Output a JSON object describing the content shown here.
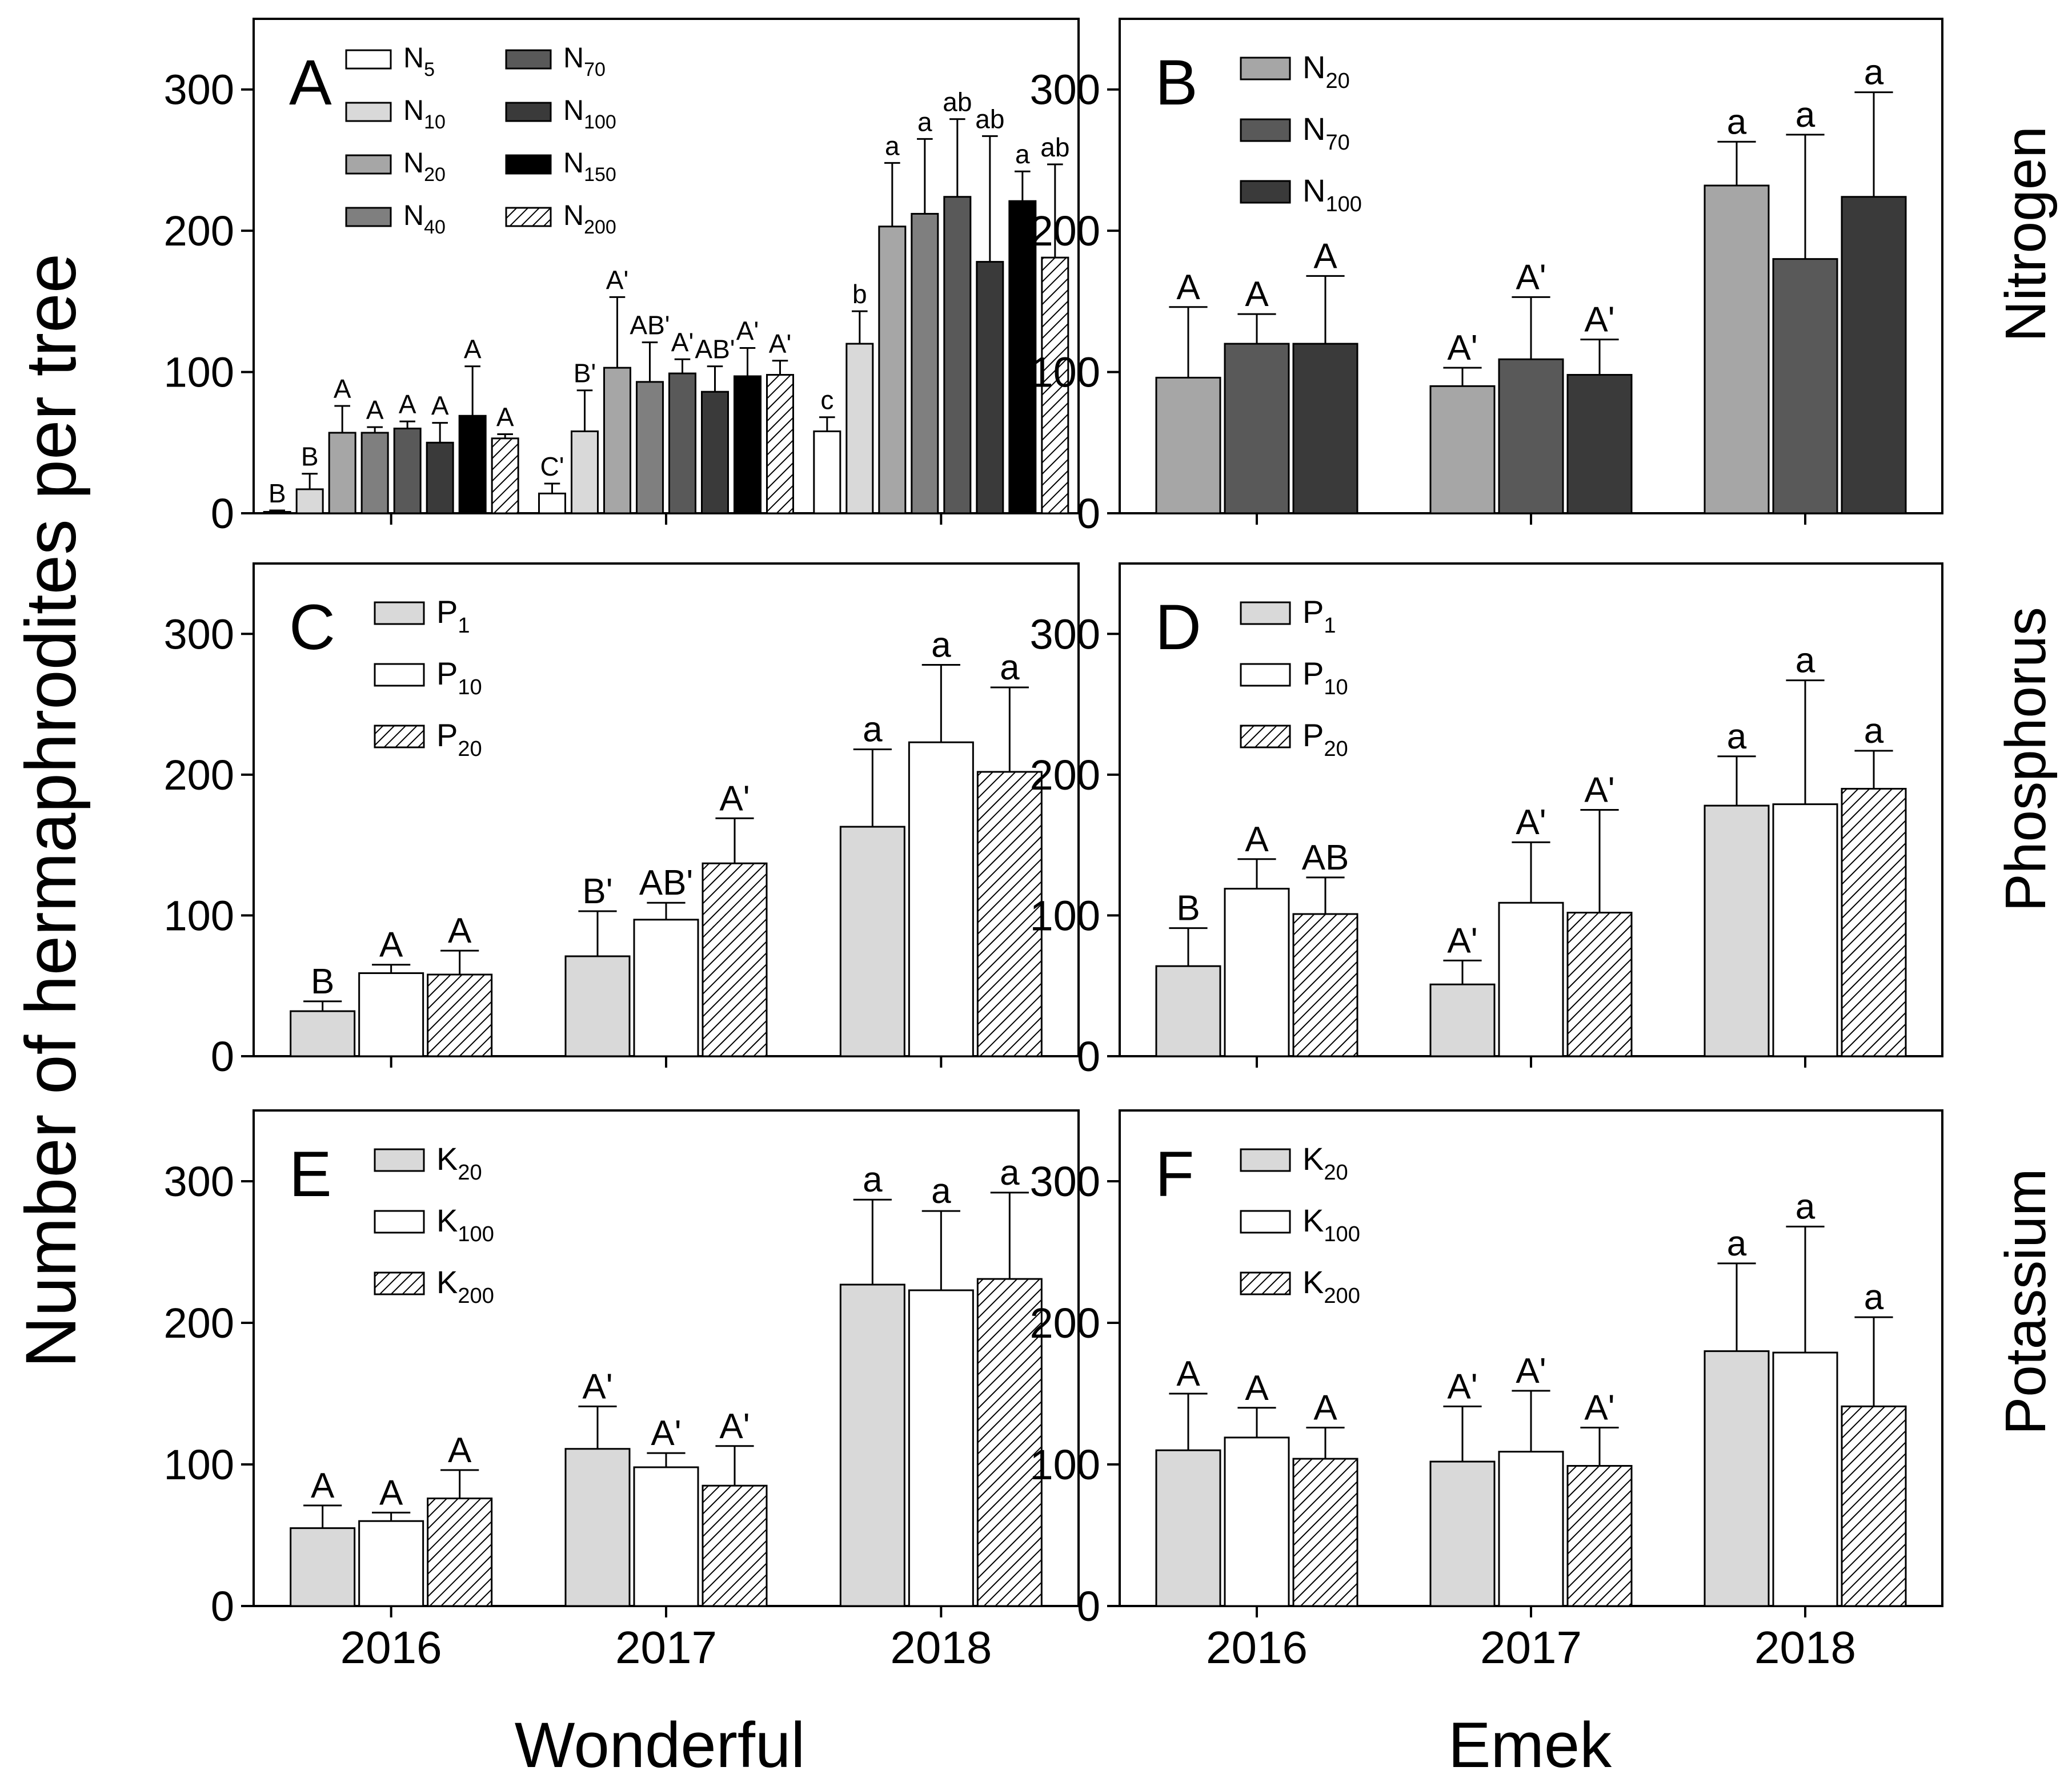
{
  "figure": {
    "ylabel": "Number of hermaphrodites per tree",
    "column_labels": [
      "Wonderful",
      "Emek"
    ],
    "row_labels": [
      "Nitrogen",
      "Phosphorus",
      "Potassium"
    ],
    "colors": {
      "axis": "#000000",
      "background": "#ffffff"
    }
  },
  "chart_data": [
    {
      "panel": "A",
      "type": "bar",
      "categories": [
        "2016",
        "2017",
        "2018"
      ],
      "ylim": [
        0,
        350
      ],
      "yticks": [
        0,
        100,
        200,
        300
      ],
      "show_xtick_labels": false,
      "legend": {
        "columns": 2,
        "placement": "top-left"
      },
      "series": [
        {
          "name": "N",
          "sub": "5",
          "fill": "#ffffff",
          "values": [
            1,
            14,
            58
          ],
          "errors": [
            1,
            7,
            10
          ],
          "letters": [
            "B",
            "C'",
            "c"
          ]
        },
        {
          "name": "N",
          "sub": "10",
          "fill": "#d9d9d9",
          "values": [
            17,
            58,
            120
          ],
          "errors": [
            11,
            29,
            23
          ],
          "letters": [
            "B",
            "B'",
            "b"
          ]
        },
        {
          "name": "N",
          "sub": "20",
          "fill": "#a6a6a6",
          "values": [
            57,
            103,
            203
          ],
          "errors": [
            19,
            50,
            45
          ],
          "letters": [
            "A",
            "A'",
            "a"
          ]
        },
        {
          "name": "N",
          "sub": "40",
          "fill": "#7f7f7f",
          "values": [
            57,
            93,
            212
          ],
          "errors": [
            4,
            28,
            53
          ],
          "letters": [
            "A",
            "AB'",
            "a"
          ]
        },
        {
          "name": "N",
          "sub": "70",
          "fill": "#595959",
          "values": [
            60,
            99,
            224
          ],
          "errors": [
            5,
            10,
            55
          ],
          "letters": [
            "A",
            "A'",
            "ab"
          ]
        },
        {
          "name": "N",
          "sub": "100",
          "fill": "#3a3a3a",
          "values": [
            50,
            86,
            178
          ],
          "errors": [
            14,
            18,
            89
          ],
          "letters": [
            "A",
            "AB'",
            "ab"
          ]
        },
        {
          "name": "N",
          "sub": "150",
          "fill": "#000000",
          "values": [
            69,
            97,
            221
          ],
          "errors": [
            35,
            20,
            21
          ],
          "letters": [
            "A",
            "A'",
            "a"
          ]
        },
        {
          "name": "N",
          "sub": "200",
          "fill": "hatch",
          "values": [
            53,
            98,
            181
          ],
          "errors": [
            3,
            10,
            66
          ],
          "letters": [
            "A",
            "A'",
            "ab"
          ]
        }
      ]
    },
    {
      "panel": "B",
      "type": "bar",
      "categories": [
        "2016",
        "2017",
        "2018"
      ],
      "ylim": [
        0,
        350
      ],
      "yticks": [
        0,
        100,
        200,
        300
      ],
      "show_xtick_labels": false,
      "legend": {
        "columns": 1,
        "placement": "top-left"
      },
      "series": [
        {
          "name": "N",
          "sub": "20",
          "fill": "#a6a6a6",
          "values": [
            96,
            90,
            232
          ],
          "errors": [
            50,
            13,
            31
          ],
          "letters": [
            "A",
            "A'",
            "a"
          ]
        },
        {
          "name": "N",
          "sub": "70",
          "fill": "#595959",
          "values": [
            120,
            109,
            180
          ],
          "errors": [
            21,
            44,
            88
          ],
          "letters": [
            "A",
            "A'",
            "a"
          ]
        },
        {
          "name": "N",
          "sub": "100",
          "fill": "#3a3a3a",
          "values": [
            120,
            98,
            224
          ],
          "errors": [
            48,
            25,
            74
          ],
          "letters": [
            "A",
            "A'",
            "a"
          ]
        }
      ]
    },
    {
      "panel": "C",
      "type": "bar",
      "categories": [
        "2016",
        "2017",
        "2018"
      ],
      "ylim": [
        0,
        350
      ],
      "yticks": [
        0,
        100,
        200,
        300
      ],
      "show_xtick_labels": false,
      "legend": {
        "columns": 1,
        "placement": "top-left"
      },
      "series": [
        {
          "name": "P",
          "sub": "1",
          "fill": "#d9d9d9",
          "values": [
            32,
            71,
            163
          ],
          "errors": [
            7,
            32,
            55
          ],
          "letters": [
            "B",
            "B'",
            "a"
          ]
        },
        {
          "name": "P",
          "sub": "10",
          "fill": "#ffffff",
          "values": [
            59,
            97,
            223
          ],
          "errors": [
            6,
            12,
            55
          ],
          "letters": [
            "A",
            "AB'",
            "a"
          ]
        },
        {
          "name": "P",
          "sub": "20",
          "fill": "hatch",
          "values": [
            58,
            137,
            202
          ],
          "errors": [
            17,
            32,
            60
          ],
          "letters": [
            "A",
            "A'",
            "a"
          ]
        }
      ]
    },
    {
      "panel": "D",
      "type": "bar",
      "categories": [
        "2016",
        "2017",
        "2018"
      ],
      "ylim": [
        0,
        350
      ],
      "yticks": [
        0,
        100,
        200,
        300
      ],
      "show_xtick_labels": false,
      "legend": {
        "columns": 1,
        "placement": "top-left"
      },
      "series": [
        {
          "name": "P",
          "sub": "1",
          "fill": "#d9d9d9",
          "values": [
            64,
            51,
            178
          ],
          "errors": [
            27,
            17,
            35
          ],
          "letters": [
            "B",
            "A'",
            "a"
          ]
        },
        {
          "name": "P",
          "sub": "10",
          "fill": "#ffffff",
          "values": [
            119,
            109,
            179
          ],
          "errors": [
            21,
            43,
            88
          ],
          "letters": [
            "A",
            "A'",
            "a"
          ]
        },
        {
          "name": "P",
          "sub": "20",
          "fill": "hatch",
          "values": [
            101,
            102,
            190
          ],
          "errors": [
            26,
            73,
            27
          ],
          "letters": [
            "AB",
            "A'",
            "a"
          ]
        }
      ]
    },
    {
      "panel": "E",
      "type": "bar",
      "categories": [
        "2016",
        "2017",
        "2018"
      ],
      "ylim": [
        0,
        350
      ],
      "yticks": [
        0,
        100,
        200,
        300
      ],
      "show_xtick_labels": true,
      "legend": {
        "columns": 1,
        "placement": "top-left"
      },
      "series": [
        {
          "name": "K",
          "sub": "20",
          "fill": "#d9d9d9",
          "values": [
            55,
            111,
            227
          ],
          "errors": [
            16,
            30,
            60
          ],
          "letters": [
            "A",
            "A'",
            "a"
          ]
        },
        {
          "name": "K",
          "sub": "100",
          "fill": "#ffffff",
          "values": [
            60,
            98,
            223
          ],
          "errors": [
            6,
            10,
            56
          ],
          "letters": [
            "A",
            "A'",
            "a"
          ]
        },
        {
          "name": "K",
          "sub": "200",
          "fill": "hatch",
          "values": [
            76,
            85,
            231
          ],
          "errors": [
            20,
            28,
            61
          ],
          "letters": [
            "A",
            "A'",
            "a"
          ]
        }
      ]
    },
    {
      "panel": "F",
      "type": "bar",
      "categories": [
        "2016",
        "2017",
        "2018"
      ],
      "ylim": [
        0,
        350
      ],
      "yticks": [
        0,
        100,
        200,
        300
      ],
      "show_xtick_labels": true,
      "legend": {
        "columns": 1,
        "placement": "top-left"
      },
      "series": [
        {
          "name": "K",
          "sub": "20",
          "fill": "#d9d9d9",
          "values": [
            110,
            102,
            180
          ],
          "errors": [
            40,
            39,
            62
          ],
          "letters": [
            "A",
            "A'",
            "a"
          ]
        },
        {
          "name": "K",
          "sub": "100",
          "fill": "#ffffff",
          "values": [
            119,
            109,
            179
          ],
          "errors": [
            21,
            43,
            89
          ],
          "letters": [
            "A",
            "A'",
            "a"
          ]
        },
        {
          "name": "K",
          "sub": "200",
          "fill": "hatch",
          "values": [
            104,
            99,
            141
          ],
          "errors": [
            22,
            27,
            63
          ],
          "letters": [
            "A",
            "A'",
            "a"
          ]
        }
      ]
    }
  ]
}
